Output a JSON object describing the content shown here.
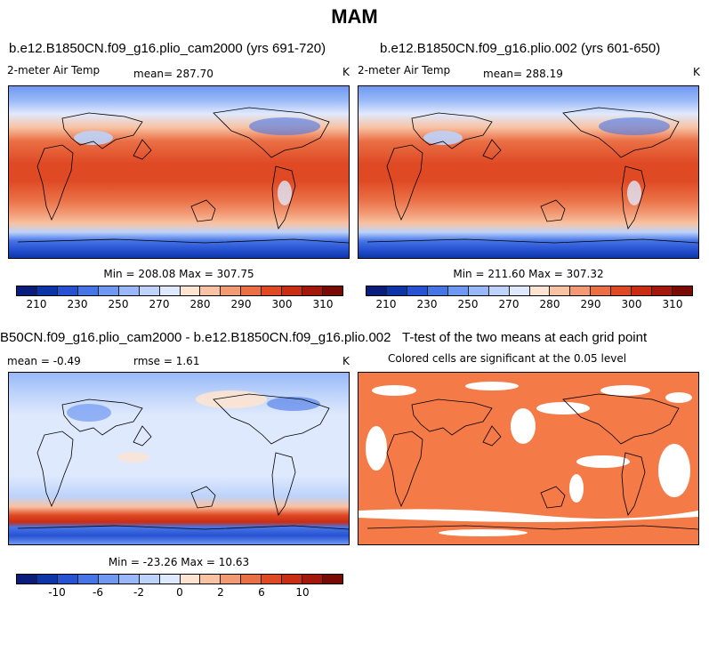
{
  "figure": {
    "title": "MAM"
  },
  "chart_data": [
    {
      "type": "heatmap",
      "title": "b.e12.B1850CN.f09_g16.plio_cam2000 (yrs 691-720)",
      "variable": "2-meter Air Temp",
      "mean_label": "mean= 287.70",
      "units": "K",
      "stats_label": "Min = 208.08 Max = 307.75",
      "min": 208.08,
      "max": 307.75,
      "mean": 287.7,
      "colorbar": {
        "tick_labels": [
          "210",
          "230",
          "250",
          "270",
          "280",
          "290",
          "300",
          "310"
        ],
        "colors": [
          "#0a1c7c",
          "#0c35a8",
          "#2752d2",
          "#4675e6",
          "#6f98f2",
          "#98b8f7",
          "#bdd3fb",
          "#dfe9fd",
          "#fde4d2",
          "#f8c2a3",
          "#f29a74",
          "#ea6f45",
          "#df4a25",
          "#c92d14",
          "#a3180b",
          "#7a0a04"
        ]
      }
    },
    {
      "type": "heatmap",
      "title": "b.e12.B1850CN.f09_g16.plio.002 (yrs 601-650)",
      "variable": "2-meter Air Temp",
      "mean_label": "mean= 288.19",
      "units": "K",
      "stats_label": "Min = 211.60 Max = 307.32",
      "min": 211.6,
      "max": 307.32,
      "mean": 288.19,
      "colorbar": {
        "tick_labels": [
          "210",
          "230",
          "250",
          "270",
          "280",
          "290",
          "300",
          "310"
        ],
        "colors": [
          "#0a1c7c",
          "#0c35a8",
          "#2752d2",
          "#4675e6",
          "#6f98f2",
          "#98b8f7",
          "#bdd3fb",
          "#dfe9fd",
          "#fde4d2",
          "#f8c2a3",
          "#f29a74",
          "#ea6f45",
          "#df4a25",
          "#c92d14",
          "#a3180b",
          "#7a0a04"
        ]
      }
    },
    {
      "type": "heatmap",
      "title": "B50CN.f09_g16.plio_cam2000 - b.e12.B1850CN.f09_g16.plio.002",
      "mean_label": "mean = -0.49",
      "rmse_label": "rmse = 1.61",
      "units": "K",
      "stats_label": "Min = -23.26 Max = 10.63",
      "min": -23.26,
      "max": 10.63,
      "mean": -0.49,
      "rmse": 1.61,
      "colorbar": {
        "tick_labels": [
          "-10",
          "-6",
          "-2",
          "0",
          "2",
          "6",
          "10"
        ],
        "colors": [
          "#0a1c7c",
          "#0c35a8",
          "#2752d2",
          "#4675e6",
          "#6f98f2",
          "#98b8f7",
          "#bdd3fb",
          "#dfe9fd",
          "#fde4d2",
          "#f8c2a3",
          "#f29a74",
          "#ea6f45",
          "#df4a25",
          "#c92d14",
          "#a3180b",
          "#7a0a04"
        ]
      }
    },
    {
      "type": "heatmap",
      "title": "T-test of the two means at each grid point",
      "subtitle": "Colored cells are significant at the 0.05 level",
      "significance_level": 0.05,
      "significant_color": "#f47a47",
      "not_significant_color": "#ffffff"
    }
  ]
}
